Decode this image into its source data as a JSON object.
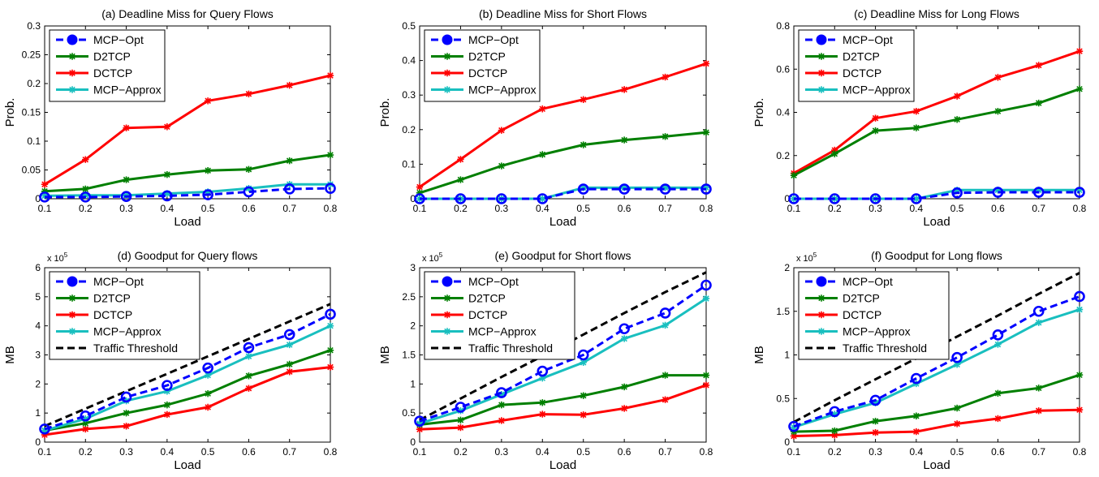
{
  "figure": {
    "series_styles": {
      "MCP-Opt": {
        "color": "#0000ff",
        "dash": "dashed",
        "marker": "circle"
      },
      "D2TCP": {
        "color": "#007f00",
        "dash": "solid",
        "marker": "star"
      },
      "DCTCP": {
        "color": "#ff0000",
        "dash": "solid",
        "marker": "star"
      },
      "MCP-Approx": {
        "color": "#19bfbf",
        "dash": "solid",
        "marker": "star"
      },
      "Traffic Threshold": {
        "color": "#000000",
        "dash": "dashed",
        "marker": "none"
      }
    }
  },
  "chart_data": [
    {
      "type": "line",
      "title": "(a) Deadline Miss for Query Flows",
      "xlabel": "Load",
      "ylabel": "Prob.",
      "x": [
        0.1,
        0.2,
        0.3,
        0.4,
        0.5,
        0.6,
        0.7,
        0.8
      ],
      "xlim": [
        0.1,
        0.8
      ],
      "ylim": [
        0,
        0.3
      ],
      "xticks": [
        "0.1",
        "0.2",
        "0.3",
        "0.4",
        "0.5",
        "0.6",
        "0.7",
        "0.8"
      ],
      "yticks": [
        "0",
        "0.05",
        "0.1",
        "0.15",
        "0.2",
        "0.25",
        "0.3"
      ],
      "ytick_values": [
        0,
        0.05,
        0.1,
        0.15,
        0.2,
        0.25,
        0.3
      ],
      "multiplier": "",
      "legend": "top-left",
      "series": [
        {
          "name": "MCP−Opt",
          "values": [
            0.003,
            0.003,
            0.004,
            0.005,
            0.007,
            0.012,
            0.017,
            0.018
          ]
        },
        {
          "name": "D2TCP",
          "values": [
            0.013,
            0.017,
            0.033,
            0.042,
            0.049,
            0.051,
            0.066,
            0.076
          ]
        },
        {
          "name": "DCTCP",
          "values": [
            0.025,
            0.068,
            0.123,
            0.125,
            0.17,
            0.182,
            0.197,
            0.214
          ]
        },
        {
          "name": "MCP−Approx",
          "values": [
            0.005,
            0.006,
            0.006,
            0.009,
            0.012,
            0.018,
            0.025,
            0.025
          ]
        }
      ]
    },
    {
      "type": "line",
      "title": "(b) Deadline Miss for Short Flows",
      "xlabel": "Load",
      "ylabel": "Prob.",
      "x": [
        0.1,
        0.2,
        0.3,
        0.4,
        0.5,
        0.6,
        0.7,
        0.8
      ],
      "xlim": [
        0.1,
        0.8
      ],
      "ylim": [
        0,
        0.5
      ],
      "xticks": [
        "0.1",
        "0.2",
        "0.3",
        "0.4",
        "0.5",
        "0.6",
        "0.7",
        "0.8"
      ],
      "yticks": [
        "0",
        "0.1",
        "0.2",
        "0.3",
        "0.4",
        "0.5"
      ],
      "ytick_values": [
        0,
        0.1,
        0.2,
        0.3,
        0.4,
        0.5
      ],
      "multiplier": "",
      "legend": "top-left",
      "series": [
        {
          "name": "MCP−Opt",
          "values": [
            0.0,
            0.0,
            0.0,
            0.0,
            0.028,
            0.028,
            0.028,
            0.028
          ]
        },
        {
          "name": "D2TCP",
          "values": [
            0.017,
            0.055,
            0.095,
            0.128,
            0.156,
            0.17,
            0.18,
            0.192
          ]
        },
        {
          "name": "DCTCP",
          "values": [
            0.034,
            0.114,
            0.198,
            0.26,
            0.287,
            0.316,
            0.352,
            0.391
          ]
        },
        {
          "name": "MCP−Approx",
          "values": [
            0.0,
            0.0,
            0.0,
            0.0,
            0.032,
            0.032,
            0.032,
            0.032
          ]
        }
      ]
    },
    {
      "type": "line",
      "title": "(c) Deadline Miss for Long Flows",
      "xlabel": "Load",
      "ylabel": "Prob.",
      "x": [
        0.1,
        0.2,
        0.3,
        0.4,
        0.5,
        0.6,
        0.7,
        0.8
      ],
      "xlim": [
        0.1,
        0.8
      ],
      "ylim": [
        0,
        0.8
      ],
      "xticks": [
        "0.1",
        "0.2",
        "0.3",
        "0.4",
        "0.5",
        "0.6",
        "0.7",
        "0.8"
      ],
      "yticks": [
        "0",
        "0.2",
        "0.4",
        "0.6",
        "0.8"
      ],
      "ytick_values": [
        0,
        0.2,
        0.4,
        0.6,
        0.8
      ],
      "multiplier": "",
      "legend": "top-left",
      "series": [
        {
          "name": "MCP−Opt",
          "values": [
            0.0,
            0.0,
            0.0,
            0.0,
            0.027,
            0.03,
            0.03,
            0.03
          ]
        },
        {
          "name": "D2TCP",
          "values": [
            0.108,
            0.208,
            0.315,
            0.328,
            0.367,
            0.405,
            0.443,
            0.508
          ]
        },
        {
          "name": "DCTCP",
          "values": [
            0.118,
            0.225,
            0.373,
            0.405,
            0.475,
            0.562,
            0.618,
            0.683
          ]
        },
        {
          "name": "MCP−Approx",
          "values": [
            0.0,
            0.0,
            0.0,
            0.0,
            0.04,
            0.04,
            0.04,
            0.04
          ]
        }
      ]
    },
    {
      "type": "line",
      "title": "(d) Goodput for Query flows",
      "xlabel": "Load",
      "ylabel": "MB",
      "x": [
        0.1,
        0.2,
        0.3,
        0.4,
        0.5,
        0.6,
        0.7,
        0.8
      ],
      "xlim": [
        0.1,
        0.8
      ],
      "ylim": [
        0,
        6
      ],
      "xticks": [
        "0.1",
        "0.2",
        "0.3",
        "0.4",
        "0.5",
        "0.6",
        "0.7",
        "0.8"
      ],
      "yticks": [
        "0",
        "1",
        "2",
        "3",
        "4",
        "5",
        "6"
      ],
      "ytick_values": [
        0,
        1,
        2,
        3,
        4,
        5,
        6
      ],
      "multiplier": "x 10",
      "multiplier_exp": "5",
      "legend": "top-left",
      "series": [
        {
          "name": "MCP−Opt",
          "values": [
            0.45,
            0.9,
            1.55,
            1.95,
            2.55,
            3.25,
            3.7,
            4.4
          ]
        },
        {
          "name": "D2TCP",
          "values": [
            0.4,
            0.65,
            1.0,
            1.28,
            1.67,
            2.28,
            2.68,
            3.16
          ]
        },
        {
          "name": "DCTCP",
          "values": [
            0.25,
            0.45,
            0.55,
            0.95,
            1.2,
            1.85,
            2.42,
            2.58
          ]
        },
        {
          "name": "MCP−Approx",
          "values": [
            0.4,
            0.8,
            1.42,
            1.75,
            2.3,
            2.95,
            3.35,
            4.0
          ]
        },
        {
          "name": "Traffic Threshold",
          "values": [
            0.55,
            1.15,
            1.75,
            2.35,
            2.95,
            3.55,
            4.15,
            4.75
          ]
        }
      ]
    },
    {
      "type": "line",
      "title": "(e) Goodput for Short flows",
      "xlabel": "Load",
      "ylabel": "MB",
      "x": [
        0.1,
        0.2,
        0.3,
        0.4,
        0.5,
        0.6,
        0.7,
        0.8
      ],
      "xlim": [
        0.1,
        0.8
      ],
      "ylim": [
        0,
        3
      ],
      "xticks": [
        "0.1",
        "0.2",
        "0.3",
        "0.4",
        "0.5",
        "0.6",
        "0.7",
        "0.8"
      ],
      "yticks": [
        "0",
        "0.5",
        "1",
        "1.5",
        "2",
        "2.5",
        "3"
      ],
      "ytick_values": [
        0,
        0.5,
        1,
        1.5,
        2,
        2.5,
        3
      ],
      "multiplier": "x 10",
      "multiplier_exp": "5",
      "legend": "top-left",
      "series": [
        {
          "name": "MCP−Opt",
          "values": [
            0.36,
            0.6,
            0.85,
            1.22,
            1.5,
            1.95,
            2.22,
            2.7
          ]
        },
        {
          "name": "D2TCP",
          "values": [
            0.3,
            0.38,
            0.64,
            0.68,
            0.8,
            0.95,
            1.15,
            1.15
          ]
        },
        {
          "name": "DCTCP",
          "values": [
            0.22,
            0.25,
            0.37,
            0.48,
            0.47,
            0.58,
            0.73,
            0.98
          ]
        },
        {
          "name": "MCP−Approx",
          "values": [
            0.32,
            0.54,
            0.82,
            1.1,
            1.37,
            1.78,
            2.01,
            2.47
          ]
        },
        {
          "name": "Traffic Threshold",
          "values": [
            0.38,
            0.75,
            1.12,
            1.48,
            1.85,
            2.22,
            2.58,
            2.92
          ]
        }
      ]
    },
    {
      "type": "line",
      "title": "(f) Goodput for Long flows",
      "xlabel": "Load",
      "ylabel": "MB",
      "x": [
        0.1,
        0.2,
        0.3,
        0.4,
        0.5,
        0.6,
        0.7,
        0.8
      ],
      "xlim": [
        0.1,
        0.8
      ],
      "ylim": [
        0,
        2
      ],
      "xticks": [
        "0.1",
        "0.2",
        "0.3",
        "0.4",
        "0.5",
        "0.6",
        "0.7",
        "0.8"
      ],
      "yticks": [
        "0",
        "0.5",
        "1",
        "1.5",
        "2"
      ],
      "ytick_values": [
        0,
        0.5,
        1,
        1.5,
        2
      ],
      "multiplier": "x 10",
      "multiplier_exp": "5",
      "legend": "top-left",
      "series": [
        {
          "name": "MCP−Opt",
          "values": [
            0.18,
            0.35,
            0.48,
            0.73,
            0.97,
            1.23,
            1.5,
            1.67
          ]
        },
        {
          "name": "D2TCP",
          "values": [
            0.12,
            0.13,
            0.24,
            0.3,
            0.39,
            0.56,
            0.62,
            0.77
          ]
        },
        {
          "name": "DCTCP",
          "values": [
            0.07,
            0.08,
            0.11,
            0.12,
            0.21,
            0.27,
            0.36,
            0.37
          ]
        },
        {
          "name": "MCP−Approx",
          "values": [
            0.17,
            0.32,
            0.45,
            0.67,
            0.89,
            1.12,
            1.37,
            1.52
          ]
        },
        {
          "name": "Traffic Threshold",
          "values": [
            0.23,
            0.48,
            0.72,
            0.96,
            1.21,
            1.45,
            1.7,
            1.94
          ]
        }
      ]
    }
  ]
}
